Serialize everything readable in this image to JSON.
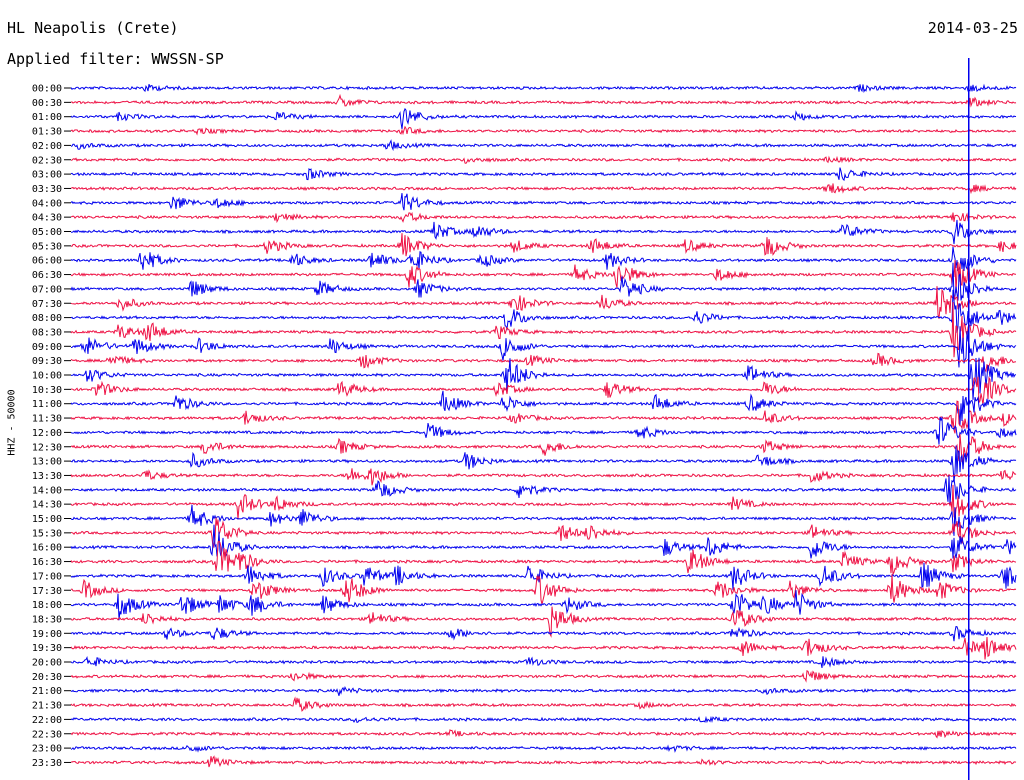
{
  "header": {
    "station": "HL Neapolis (Crete)",
    "date": "2014-03-25",
    "filter": "Applied filter: WWSSN-SP"
  },
  "channel_label": "HHZ - 50000",
  "colors": {
    "even_trace": "#0000ee",
    "odd_trace": "#ee1144",
    "marker": "#0000ee"
  },
  "chart_data": {
    "type": "line",
    "title": "HL Neapolis (Crete)",
    "subtitle": "Applied filter: WWSSN-SP",
    "ylabel": "HHZ - 50000",
    "y_tick_labels": [
      "00:00",
      "00:30",
      "01:00",
      "01:30",
      "02:00",
      "02:30",
      "03:00",
      "03:30",
      "04:00",
      "04:30",
      "05:00",
      "05:30",
      "06:00",
      "06:30",
      "07:00",
      "07:30",
      "08:00",
      "08:30",
      "09:00",
      "09:30",
      "10:00",
      "10:30",
      "11:00",
      "11:30",
      "12:00",
      "12:30",
      "13:00",
      "13:30",
      "14:00",
      "14:30",
      "15:00",
      "15:30",
      "16:00",
      "16:30",
      "17:00",
      "17:30",
      "18:00",
      "18:30",
      "19:00",
      "19:30",
      "20:00",
      "20:30",
      "21:00",
      "21:30",
      "22:00",
      "22:30",
      "23:00",
      "23:30"
    ],
    "x_range_minutes_per_line": [
      0,
      30
    ],
    "trace_colors": [
      "blue",
      "red"
    ],
    "marker_time_minutes": 28.5,
    "grid": false,
    "activity": [
      [
        {
          "t": 2.3,
          "a": 4
        },
        {
          "t": 25,
          "a": 3
        },
        {
          "t": 28.5,
          "a": 4
        }
      ],
      [
        {
          "t": 8.5,
          "a": 6
        },
        {
          "t": 28.5,
          "a": 5
        }
      ],
      [
        {
          "t": 1.5,
          "a": 4
        },
        {
          "t": 6.5,
          "a": 5
        },
        {
          "t": 10.5,
          "a": 12
        },
        {
          "t": 23,
          "a": 4
        }
      ],
      [
        {
          "t": 10.5,
          "a": 4
        },
        {
          "t": 4,
          "a": 3
        }
      ],
      [
        {
          "t": 10,
          "a": 5
        },
        {
          "t": 0.2,
          "a": 3
        }
      ],
      [
        {
          "t": 12.5,
          "a": 3
        },
        {
          "t": 24,
          "a": 3
        }
      ],
      [
        {
          "t": 7.5,
          "a": 6
        },
        {
          "t": 24.4,
          "a": 8
        }
      ],
      [
        {
          "t": 24,
          "a": 7
        },
        {
          "t": 28.5,
          "a": 4
        }
      ],
      [
        {
          "t": 3.2,
          "a": 9
        },
        {
          "t": 4.6,
          "a": 6
        },
        {
          "t": 10.5,
          "a": 12
        }
      ],
      [
        {
          "t": 6.5,
          "a": 5
        },
        {
          "t": 10.5,
          "a": 6
        },
        {
          "t": 28,
          "a": 6
        }
      ],
      [
        {
          "t": 11.5,
          "a": 10
        },
        {
          "t": 12.8,
          "a": 8
        },
        {
          "t": 24.5,
          "a": 9
        },
        {
          "t": 28,
          "a": 15
        }
      ],
      [
        {
          "t": 6.2,
          "a": 8
        },
        {
          "t": 10.5,
          "a": 14
        },
        {
          "t": 14,
          "a": 7
        },
        {
          "t": 16.5,
          "a": 9
        },
        {
          "t": 19.5,
          "a": 7
        },
        {
          "t": 22,
          "a": 14
        },
        {
          "t": 29.5,
          "a": 6
        }
      ],
      [
        {
          "t": 2.2,
          "a": 14
        },
        {
          "t": 7,
          "a": 8
        },
        {
          "t": 9.5,
          "a": 10
        },
        {
          "t": 10.8,
          "a": 14
        },
        {
          "t": 13,
          "a": 8
        },
        {
          "t": 17,
          "a": 9
        },
        {
          "t": 28,
          "a": 22
        }
      ],
      [
        {
          "t": 10.7,
          "a": 14
        },
        {
          "t": 16,
          "a": 9
        },
        {
          "t": 17.3,
          "a": 16
        },
        {
          "t": 20.5,
          "a": 8
        },
        {
          "t": 28,
          "a": 22
        }
      ],
      [
        {
          "t": 3.8,
          "a": 10
        },
        {
          "t": 7.8,
          "a": 9
        },
        {
          "t": 11,
          "a": 10
        },
        {
          "t": 17.5,
          "a": 14
        },
        {
          "t": 28,
          "a": 26
        }
      ],
      [
        {
          "t": 1.5,
          "a": 8
        },
        {
          "t": 14,
          "a": 12
        },
        {
          "t": 16.8,
          "a": 9
        },
        {
          "t": 27.5,
          "a": 22
        }
      ],
      [
        {
          "t": 13.8,
          "a": 14
        },
        {
          "t": 19.8,
          "a": 8
        },
        {
          "t": 28,
          "a": 30
        },
        {
          "t": 29.4,
          "a": 9
        }
      ],
      [
        {
          "t": 1.5,
          "a": 8
        },
        {
          "t": 2.4,
          "a": 12
        },
        {
          "t": 13.5,
          "a": 7
        },
        {
          "t": 28,
          "a": 30
        }
      ],
      [
        {
          "t": 0.4,
          "a": 12
        },
        {
          "t": 2,
          "a": 10
        },
        {
          "t": 4,
          "a": 8
        },
        {
          "t": 8.2,
          "a": 9
        },
        {
          "t": 13.7,
          "a": 14
        },
        {
          "t": 28.2,
          "a": 28
        }
      ],
      [
        {
          "t": 1.2,
          "a": 7
        },
        {
          "t": 9.2,
          "a": 9
        },
        {
          "t": 14.5,
          "a": 6
        },
        {
          "t": 25.5,
          "a": 8
        },
        {
          "t": 29,
          "a": 12
        }
      ],
      [
        {
          "t": 0.5,
          "a": 8
        },
        {
          "t": 13.8,
          "a": 22
        },
        {
          "t": 21.5,
          "a": 10
        },
        {
          "t": 28.6,
          "a": 30
        }
      ],
      [
        {
          "t": 0.8,
          "a": 9
        },
        {
          "t": 8.5,
          "a": 10
        },
        {
          "t": 13.5,
          "a": 8
        },
        {
          "t": 17,
          "a": 10
        },
        {
          "t": 22,
          "a": 8
        },
        {
          "t": 28.7,
          "a": 28
        }
      ],
      [
        {
          "t": 3.3,
          "a": 10
        },
        {
          "t": 11.8,
          "a": 12
        },
        {
          "t": 13.7,
          "a": 10
        },
        {
          "t": 18.5,
          "a": 10
        },
        {
          "t": 21.5,
          "a": 10
        },
        {
          "t": 28.2,
          "a": 26
        }
      ],
      [
        {
          "t": 5.5,
          "a": 8
        },
        {
          "t": 14,
          "a": 6
        },
        {
          "t": 22,
          "a": 8
        },
        {
          "t": 28,
          "a": 22
        },
        {
          "t": 29.6,
          "a": 7
        }
      ],
      [
        {
          "t": 11.3,
          "a": 10
        },
        {
          "t": 18,
          "a": 8
        },
        {
          "t": 27.5,
          "a": 20
        },
        {
          "t": 29.4,
          "a": 6
        }
      ],
      [
        {
          "t": 4.2,
          "a": 8
        },
        {
          "t": 8.5,
          "a": 8
        },
        {
          "t": 15,
          "a": 9
        },
        {
          "t": 22,
          "a": 7
        },
        {
          "t": 28.2,
          "a": 24
        }
      ],
      [
        {
          "t": 3.8,
          "a": 8
        },
        {
          "t": 12.5,
          "a": 10
        },
        {
          "t": 21.8,
          "a": 8
        },
        {
          "t": 28,
          "a": 22
        }
      ],
      [
        {
          "t": 2.3,
          "a": 6
        },
        {
          "t": 8.8,
          "a": 9
        },
        {
          "t": 9.5,
          "a": 10
        },
        {
          "t": 23.5,
          "a": 8
        },
        {
          "t": 29.5,
          "a": 7
        }
      ],
      [
        {
          "t": 9.7,
          "a": 12
        },
        {
          "t": 14.2,
          "a": 10
        },
        {
          "t": 27.8,
          "a": 20
        }
      ],
      [
        {
          "t": 5.3,
          "a": 14
        },
        {
          "t": 6.5,
          "a": 8
        },
        {
          "t": 21,
          "a": 7
        },
        {
          "t": 28,
          "a": 20
        }
      ],
      [
        {
          "t": 3.8,
          "a": 14
        },
        {
          "t": 6.3,
          "a": 8
        },
        {
          "t": 7.3,
          "a": 10
        },
        {
          "t": 28,
          "a": 18
        }
      ],
      [
        {
          "t": 4.5,
          "a": 22
        },
        {
          "t": 15.5,
          "a": 10
        },
        {
          "t": 16.4,
          "a": 9
        },
        {
          "t": 23.5,
          "a": 8
        },
        {
          "t": 28,
          "a": 16
        }
      ],
      [
        {
          "t": 4.5,
          "a": 24
        },
        {
          "t": 18.8,
          "a": 10
        },
        {
          "t": 20.2,
          "a": 12
        },
        {
          "t": 23.5,
          "a": 14
        },
        {
          "t": 28,
          "a": 16
        },
        {
          "t": 29.7,
          "a": 8
        }
      ],
      [
        {
          "t": 4.6,
          "a": 24
        },
        {
          "t": 5.3,
          "a": 9
        },
        {
          "t": 19.6,
          "a": 16
        },
        {
          "t": 24.5,
          "a": 10
        },
        {
          "t": 26,
          "a": 14
        },
        {
          "t": 28,
          "a": 10
        }
      ],
      [
        {
          "t": 5.6,
          "a": 12
        },
        {
          "t": 8,
          "a": 10
        },
        {
          "t": 9.3,
          "a": 12
        },
        {
          "t": 10.3,
          "a": 10
        },
        {
          "t": 14.5,
          "a": 12
        },
        {
          "t": 21,
          "a": 14
        },
        {
          "t": 23.8,
          "a": 14
        },
        {
          "t": 27,
          "a": 16
        },
        {
          "t": 29.6,
          "a": 16
        }
      ],
      [
        {
          "t": 0.4,
          "a": 10
        },
        {
          "t": 5.8,
          "a": 14
        },
        {
          "t": 8.7,
          "a": 18
        },
        {
          "t": 14.8,
          "a": 18
        },
        {
          "t": 20.5,
          "a": 12
        },
        {
          "t": 22.8,
          "a": 10
        },
        {
          "t": 26,
          "a": 18
        },
        {
          "t": 27.5,
          "a": 12
        }
      ],
      [
        {
          "t": 1.5,
          "a": 16
        },
        {
          "t": 3.5,
          "a": 14
        },
        {
          "t": 4.7,
          "a": 10
        },
        {
          "t": 5.7,
          "a": 12
        },
        {
          "t": 8,
          "a": 10
        },
        {
          "t": 15.7,
          "a": 9
        },
        {
          "t": 21,
          "a": 18
        },
        {
          "t": 22,
          "a": 10
        },
        {
          "t": 23,
          "a": 14
        }
      ],
      [
        {
          "t": 2.3,
          "a": 7
        },
        {
          "t": 9.5,
          "a": 8
        },
        {
          "t": 15.2,
          "a": 18
        },
        {
          "t": 21,
          "a": 14
        }
      ],
      [
        {
          "t": 3,
          "a": 6
        },
        {
          "t": 4.5,
          "a": 8
        },
        {
          "t": 12,
          "a": 7
        },
        {
          "t": 21,
          "a": 8
        },
        {
          "t": 28,
          "a": 8
        }
      ],
      [
        {
          "t": 21.2,
          "a": 10
        },
        {
          "t": 23.3,
          "a": 12
        },
        {
          "t": 28.3,
          "a": 10
        },
        {
          "t": 29,
          "a": 12
        }
      ],
      [
        {
          "t": 0.5,
          "a": 6
        },
        {
          "t": 14.5,
          "a": 5
        },
        {
          "t": 23.8,
          "a": 6
        }
      ],
      [
        {
          "t": 7,
          "a": 5
        },
        {
          "t": 23.3,
          "a": 8
        }
      ],
      [
        {
          "t": 8.5,
          "a": 4
        },
        {
          "t": 22,
          "a": 3
        }
      ],
      [
        {
          "t": 7.1,
          "a": 8
        },
        {
          "t": 18,
          "a": 3
        }
      ],
      [
        {
          "t": 9,
          "a": 3
        },
        {
          "t": 20,
          "a": 3
        }
      ],
      [
        {
          "t": 27.5,
          "a": 4
        },
        {
          "t": 12,
          "a": 3
        }
      ],
      [
        {
          "t": 3.7,
          "a": 4
        },
        {
          "t": 19,
          "a": 3
        }
      ],
      [
        {
          "t": 4.4,
          "a": 6
        },
        {
          "t": 20,
          "a": 3
        }
      ]
    ]
  }
}
